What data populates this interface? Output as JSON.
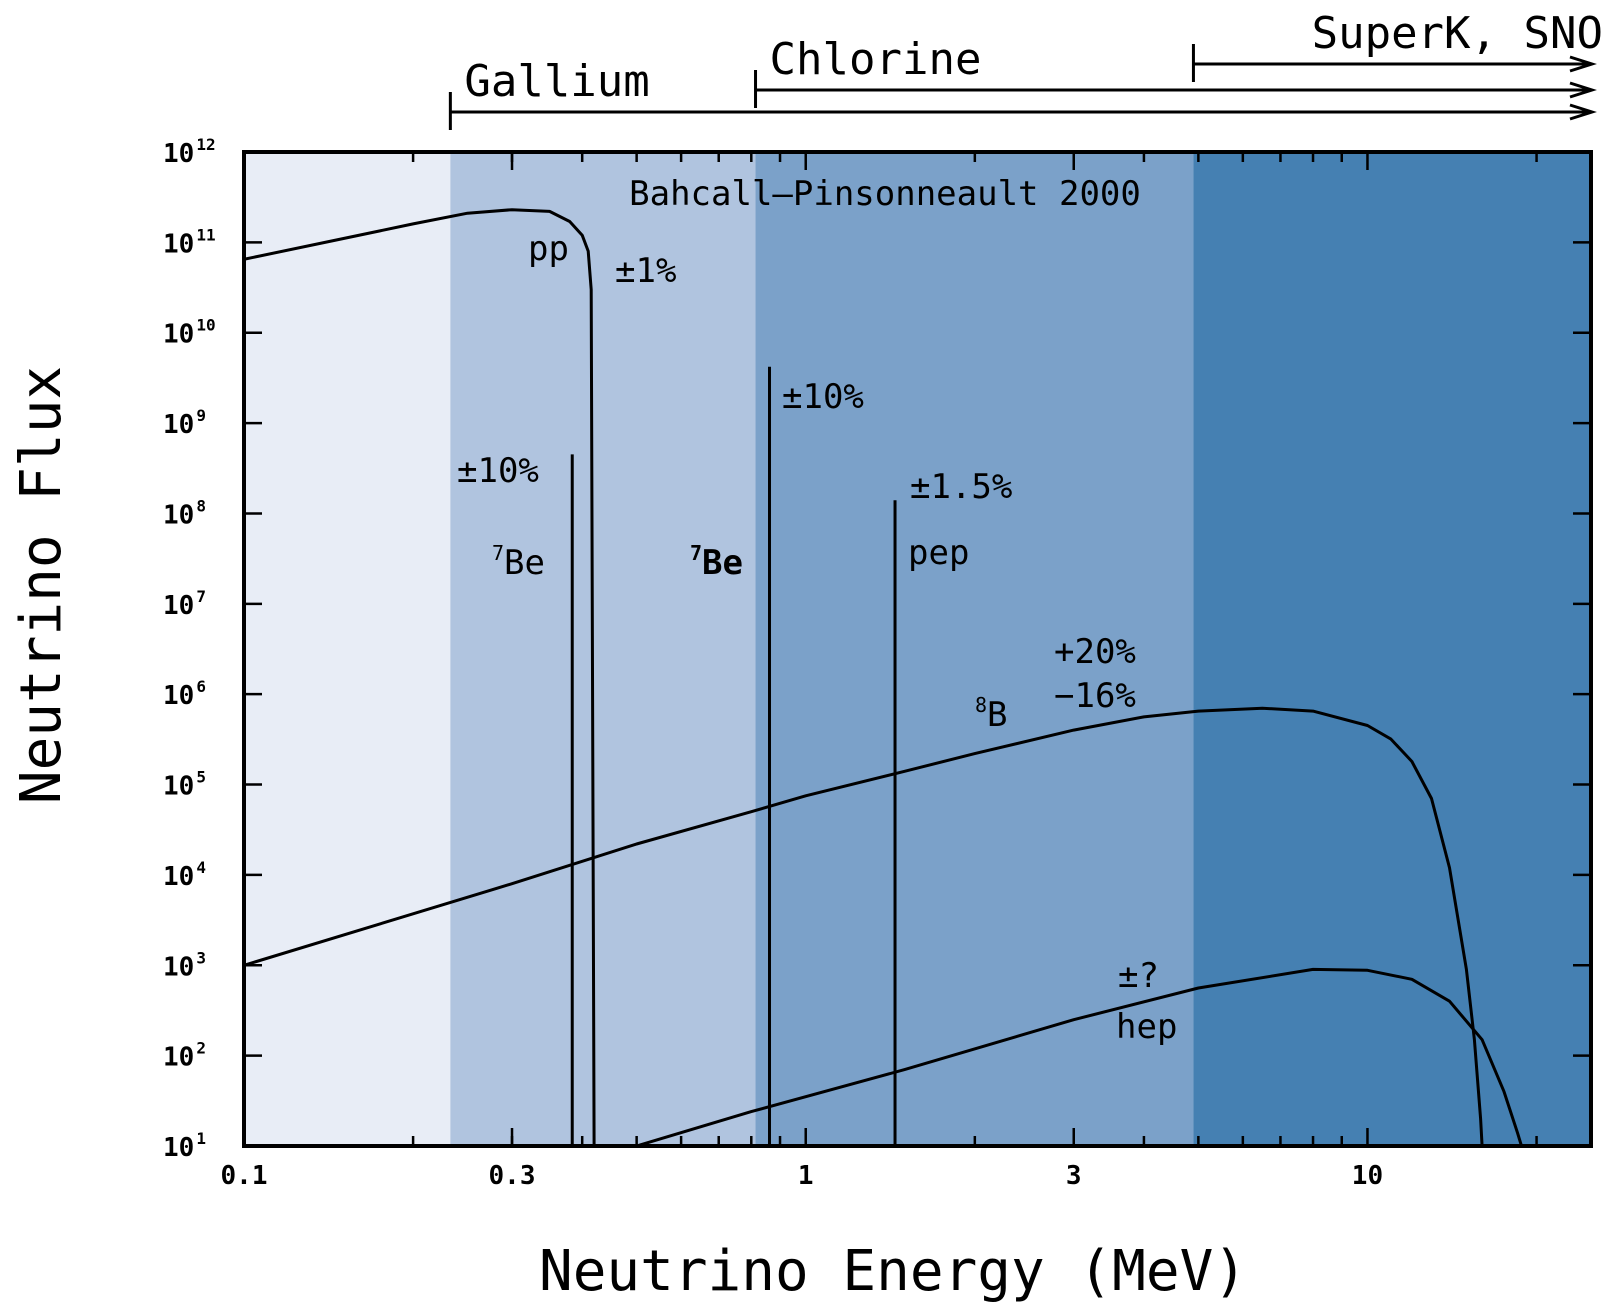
{
  "chart_data": {
    "type": "line",
    "title": "Bahcall–Pinsonneault 2000",
    "xlabel": "Neutrino Energy (MeV)",
    "ylabel": "Neutrino Flux",
    "xscale": "log",
    "yscale": "log",
    "xlim": [
      0.1,
      25
    ],
    "ylim": [
      10,
      1000000000000
    ],
    "grid": false,
    "x_ticks": [
      {
        "value": 0.1,
        "label": "0.1"
      },
      {
        "value": 0.3,
        "label": "0.3"
      },
      {
        "value": 1,
        "label": "1"
      },
      {
        "value": 3,
        "label": "3"
      },
      {
        "value": 10,
        "label": "10"
      }
    ],
    "y_ticks": [
      {
        "value": 10,
        "base": "10",
        "exp": "1"
      },
      {
        "value": 100,
        "base": "10",
        "exp": "2"
      },
      {
        "value": 1000,
        "base": "10",
        "exp": "3"
      },
      {
        "value": 10000,
        "base": "10",
        "exp": "4"
      },
      {
        "value": 100000,
        "base": "10",
        "exp": "5"
      },
      {
        "value": 1000000,
        "base": "10",
        "exp": "6"
      },
      {
        "value": 10000000,
        "base": "10",
        "exp": "7"
      },
      {
        "value": 100000000,
        "base": "10",
        "exp": "8"
      },
      {
        "value": 1000000000,
        "base": "10",
        "exp": "9"
      },
      {
        "value": 10000000000,
        "base": "10",
        "exp": "10"
      },
      {
        "value": 100000000000,
        "base": "10",
        "exp": "11"
      },
      {
        "value": 1000000000000,
        "base": "10",
        "exp": "12"
      }
    ],
    "bands": [
      {
        "x0": 0.1,
        "x1": 0.233,
        "color": "#e8edf6"
      },
      {
        "x0": 0.233,
        "x1": 0.814,
        "color": "#b0c4df"
      },
      {
        "x0": 0.814,
        "x1": 4.9,
        "color": "#7ba1c9"
      },
      {
        "x0": 4.9,
        "x1": 25,
        "color": "#4580b2"
      }
    ],
    "detectors": [
      {
        "name": "Gallium",
        "threshold_mev": 0.233
      },
      {
        "name": "Chlorine",
        "threshold_mev": 0.814
      },
      {
        "name": "SuperK, SNO",
        "threshold_mev": 4.9
      }
    ],
    "series": [
      {
        "name": "pp",
        "uncertainty": "±1%",
        "x": [
          0.1,
          0.15,
          0.2,
          0.25,
          0.3,
          0.35,
          0.38,
          0.4,
          0.41,
          0.415,
          0.42
        ],
        "y": [
          65000000000,
          110000000000,
          160000000000,
          210000000000,
          230000000000,
          220000000000,
          170000000000,
          120000000000,
          80000000000,
          30000000000,
          10
        ]
      },
      {
        "name": "8B",
        "uncertainty_plus": "+20%",
        "uncertainty_minus": "−16%",
        "x": [
          0.1,
          0.3,
          0.5,
          0.8,
          1.0,
          1.5,
          2.0,
          3.0,
          4.0,
          5.0,
          6.5,
          8.0,
          10.0,
          11.0,
          12.0,
          13.0,
          14.0,
          15.0,
          15.5,
          15.9,
          16.0
        ],
        "y": [
          1000,
          8000,
          22000,
          50000,
          75000,
          140000,
          220000,
          400000,
          560000,
          650000,
          700000,
          650000,
          450000,
          320000,
          180000,
          70000,
          12000,
          900,
          150,
          20,
          10
        ]
      },
      {
        "name": "hep",
        "uncertainty": "±?",
        "x": [
          0.5,
          0.8,
          1.5,
          3.0,
          5.0,
          8.0,
          10.0,
          12.0,
          14.0,
          16.0,
          17.5,
          18.5,
          18.8
        ],
        "y": [
          10,
          24,
          70,
          250,
          560,
          900,
          880,
          700,
          400,
          150,
          40,
          14,
          10
        ]
      }
    ],
    "lines": [
      {
        "name": "7Be",
        "energy": 0.384,
        "flux": 450000000,
        "uncertainty": "±10%",
        "bold": false
      },
      {
        "name": "7Be",
        "energy": 0.862,
        "flux": 4200000000,
        "uncertainty": "±10%",
        "bold": true
      },
      {
        "name": "pep",
        "energy": 1.442,
        "flux": 140000000,
        "uncertainty": "±1.5%",
        "bold": false
      }
    ]
  }
}
